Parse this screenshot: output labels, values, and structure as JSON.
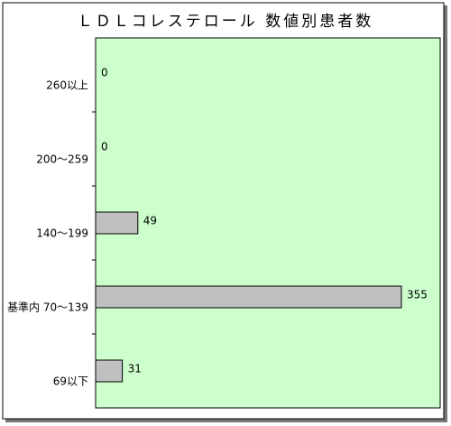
{
  "chart_data": {
    "type": "hbar",
    "title": "ＬＤＬコレステロール 数値別患者数",
    "categories": [
      "260以上",
      "200～259",
      "140～199",
      "基準内 70～139",
      "69以下"
    ],
    "values": [
      0,
      0,
      49,
      355,
      31
    ],
    "color": "#c0c0c0",
    "background": "#ccffcc",
    "xlim": [
      0,
      400
    ]
  }
}
